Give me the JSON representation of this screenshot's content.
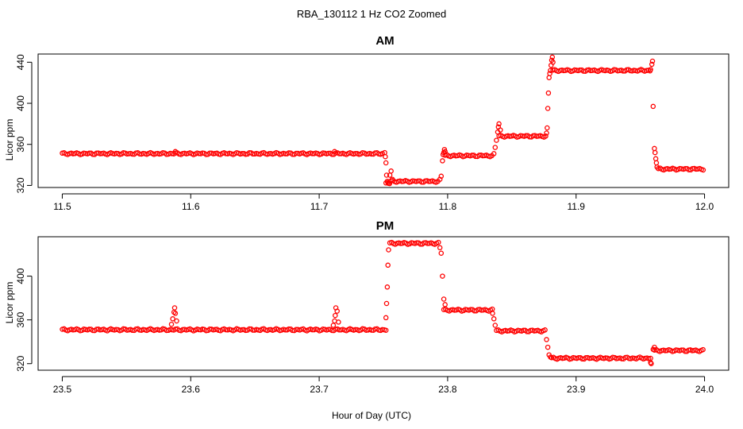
{
  "figure": {
    "title": "RBA_130112  1 Hz CO2 Zoomed",
    "xlabel": "Hour of Day (UTC)"
  },
  "colors": {
    "points": "#ff0000",
    "axes": "#000000",
    "background": "#ffffff"
  },
  "chart_data": [
    {
      "type": "scatter",
      "title": "AM",
      "xlabel": "",
      "ylabel": "Licor ppm",
      "xlim": [
        11.5,
        12.0
      ],
      "ylim": [
        318,
        448
      ],
      "xticks": [
        11.5,
        11.6,
        11.7,
        11.8,
        11.9,
        12.0
      ],
      "xtick_labels": [
        "11.5",
        "11.6",
        "11.7",
        "11.8",
        "11.9",
        "12.0"
      ],
      "yticks": [
        320,
        360,
        400,
        440
      ],
      "ytick_labels": [
        "320",
        "360",
        "400",
        "440"
      ],
      "grid": false,
      "series": [
        {
          "segments": [
            {
              "x0": 11.5,
              "x1": 11.75,
              "y": 351
            },
            {
              "x0": 11.752,
              "x1": 11.755,
              "y": 322
            },
            {
              "x0": 11.756,
              "x1": 11.793,
              "y": 324
            },
            {
              "x0": 11.798,
              "x1": 11.835,
              "y": 349
            },
            {
              "x0": 11.84,
              "x1": 11.877,
              "y": 368
            },
            {
              "x0": 11.882,
              "x1": 11.958,
              "y": 432
            },
            {
              "x0": 11.964,
              "x1": 12.0,
              "y": 336
            }
          ],
          "points": [
            [
              11.588,
              353
            ],
            [
              11.712,
              353
            ],
            [
              11.751,
              352
            ],
            [
              11.7515,
              348
            ],
            [
              11.752,
              342
            ],
            [
              11.7525,
              330
            ],
            [
              11.753,
              324
            ],
            [
              11.754,
              322
            ],
            [
              11.755,
              330
            ],
            [
              11.756,
              334
            ],
            [
              11.757,
              326
            ],
            [
              11.794,
              326
            ],
            [
              11.795,
              329
            ],
            [
              11.796,
              344
            ],
            [
              11.7965,
              350
            ],
            [
              11.797,
              352
            ],
            [
              11.7975,
              355
            ],
            [
              11.798,
              353
            ],
            [
              11.836,
              351
            ],
            [
              11.837,
              357
            ],
            [
              11.838,
              364
            ],
            [
              11.839,
              372
            ],
            [
              11.8395,
              377
            ],
            [
              11.84,
              380
            ],
            [
              11.841,
              374
            ],
            [
              11.877,
              371
            ],
            [
              11.8775,
              376
            ],
            [
              11.878,
              395
            ],
            [
              11.8785,
              410
            ],
            [
              11.879,
              425
            ],
            [
              11.8795,
              429
            ],
            [
              11.88,
              432
            ],
            [
              11.8805,
              437
            ],
            [
              11.881,
              442
            ],
            [
              11.8815,
              445
            ],
            [
              11.882,
              440
            ],
            [
              11.958,
              433
            ],
            [
              11.959,
              438
            ],
            [
              11.9595,
              441
            ],
            [
              11.96,
              397
            ],
            [
              11.961,
              356
            ],
            [
              11.9615,
              352
            ],
            [
              11.962,
              346
            ],
            [
              11.9625,
              342
            ],
            [
              11.963,
              338
            ]
          ]
        }
      ]
    },
    {
      "type": "scatter",
      "title": "PM",
      "xlabel": "",
      "ylabel": "Licor ppm",
      "xlim": [
        23.5,
        24.0
      ],
      "ylim": [
        314,
        436
      ],
      "xticks": [
        23.5,
        23.6,
        23.7,
        23.8,
        23.9,
        24.0
      ],
      "xtick_labels": [
        "23.5",
        "23.6",
        "23.7",
        "23.8",
        "23.9",
        "24.0"
      ],
      "yticks": [
        320,
        360,
        400
      ],
      "ytick_labels": [
        "320",
        "360",
        "400"
      ],
      "grid": false,
      "series": [
        {
          "segments": [
            {
              "x0": 23.5,
              "x1": 23.752,
              "y": 351
            },
            {
              "x0": 23.755,
              "x1": 23.793,
              "y": 430
            },
            {
              "x0": 23.797,
              "x1": 23.835,
              "y": 369
            },
            {
              "x0": 23.838,
              "x1": 23.877,
              "y": 350
            },
            {
              "x0": 23.881,
              "x1": 23.958,
              "y": 325
            },
            {
              "x0": 23.961,
              "x1": 24.0,
              "y": 332
            }
          ],
          "points": [
            [
              23.585,
              356
            ],
            [
              23.586,
              361
            ],
            [
              23.587,
              367
            ],
            [
              23.5875,
              371
            ],
            [
              23.588,
              366
            ],
            [
              23.589,
              359
            ],
            [
              23.711,
              355
            ],
            [
              23.712,
              359
            ],
            [
              23.7125,
              364
            ],
            [
              23.713,
              371
            ],
            [
              23.714,
              368
            ],
            [
              23.715,
              358
            ],
            [
              23.752,
              362
            ],
            [
              23.7525,
              375
            ],
            [
              23.753,
              390
            ],
            [
              23.7535,
              410
            ],
            [
              23.754,
              424
            ],
            [
              23.794,
              426
            ],
            [
              23.795,
              421
            ],
            [
              23.796,
              400
            ],
            [
              23.797,
              379
            ],
            [
              23.798,
              374
            ],
            [
              23.835,
              366
            ],
            [
              23.836,
              361
            ],
            [
              23.837,
              355
            ],
            [
              23.877,
              342
            ],
            [
              23.878,
              335
            ],
            [
              23.879,
              328
            ],
            [
              23.88,
              326
            ],
            [
              23.958,
              321
            ],
            [
              23.9585,
              320
            ],
            [
              23.96,
              333
            ],
            [
              23.961,
              335
            ]
          ]
        }
      ]
    }
  ]
}
